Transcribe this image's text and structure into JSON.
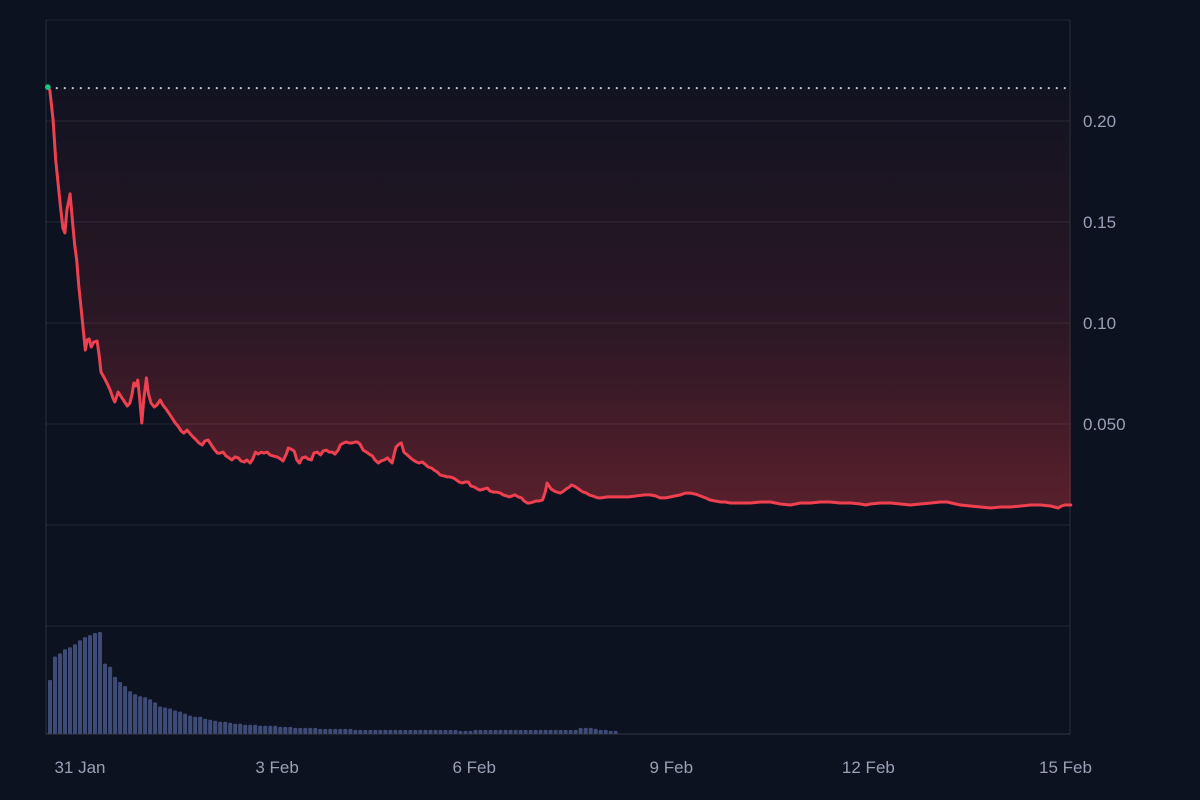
{
  "page": {
    "description": "Dark-theme cryptocurrency price chart with volume pane, 31 Jan - 15 Feb"
  },
  "colors": {
    "background": "#0d1220",
    "grid": "rgba(255,255,255,0.09)",
    "border": "rgba(255,255,255,0.12)",
    "axis_line": "rgba(255,255,255,0.16)",
    "tick_label": "#97a0b4",
    "price_line": "#ef4050",
    "area_fill_top": "rgba(234,57,67,0.02)",
    "area_fill_mid": "rgba(234,57,67,0.14)",
    "area_fill_bottom": "rgba(234,57,67,0.36)",
    "volume_bar": "#3e4b76",
    "baseline_dotted": "rgba(223,227,234,0.85)",
    "start_marker": "#17c784"
  },
  "chart_data": {
    "type": "line",
    "title": "",
    "x_axis": {
      "unit": "date",
      "tick_labels": [
        "31 Jan",
        "3 Feb",
        "6 Feb",
        "9 Feb",
        "12 Feb",
        "15 Feb"
      ],
      "tick_days": [
        0,
        3,
        6,
        9,
        12,
        15
      ],
      "range_days": [
        -0.52,
        15.08
      ],
      "vertical_grid": false
    },
    "y_axis": {
      "position": "right",
      "tick_labels": [
        "0.20",
        "0.15",
        "0.10",
        "0.050"
      ],
      "tick_values": [
        0.2,
        0.15,
        0.1,
        0.05
      ],
      "range": [
        0,
        0.25
      ],
      "grid_values": [
        0.25,
        0.2,
        0.15,
        0.1,
        0.05,
        0.0
      ]
    },
    "baseline": {
      "value": 0.2163,
      "style": "dotted",
      "note": "horizontal dotted reference line at series start price"
    },
    "start_marker": {
      "day": -0.49,
      "value": 0.2168
    },
    "price_series": {
      "name": "price",
      "points": [
        [
          -0.49,
          0.2168
        ],
        [
          -0.46,
          0.2153
        ],
        [
          -0.41,
          0.2005
        ],
        [
          -0.37,
          0.1807
        ],
        [
          -0.3,
          0.1584
        ],
        [
          -0.26,
          0.147
        ],
        [
          -0.23,
          0.1446
        ],
        [
          -0.2,
          0.1559
        ],
        [
          -0.15,
          0.1639
        ],
        [
          -0.11,
          0.1485
        ],
        [
          -0.08,
          0.1386
        ],
        [
          -0.05,
          0.1312
        ],
        [
          -0.02,
          0.1188
        ],
        [
          0.02,
          0.1064
        ],
        [
          0.05,
          0.0965
        ],
        [
          0.08,
          0.0866
        ],
        [
          0.11,
          0.0916
        ],
        [
          0.14,
          0.0921
        ],
        [
          0.17,
          0.0881
        ],
        [
          0.21,
          0.0906
        ],
        [
          0.26,
          0.0911
        ],
        [
          0.29,
          0.0842
        ],
        [
          0.32,
          0.0757
        ],
        [
          0.37,
          0.0728
        ],
        [
          0.41,
          0.0703
        ],
        [
          0.46,
          0.0668
        ],
        [
          0.5,
          0.0629
        ],
        [
          0.53,
          0.0609
        ],
        [
          0.58,
          0.0658
        ],
        [
          0.62,
          0.0639
        ],
        [
          0.67,
          0.0614
        ],
        [
          0.72,
          0.0589
        ],
        [
          0.76,
          0.0604
        ],
        [
          0.79,
          0.0644
        ],
        [
          0.82,
          0.0703
        ],
        [
          0.85,
          0.0688
        ],
        [
          0.88,
          0.0718
        ],
        [
          0.91,
          0.0619
        ],
        [
          0.94,
          0.0505
        ],
        [
          0.97,
          0.0619
        ],
        [
          1.01,
          0.0728
        ],
        [
          1.04,
          0.0653
        ],
        [
          1.08,
          0.0604
        ],
        [
          1.13,
          0.0584
        ],
        [
          1.17,
          0.0594
        ],
        [
          1.22,
          0.0619
        ],
        [
          1.26,
          0.0594
        ],
        [
          1.31,
          0.0574
        ],
        [
          1.36,
          0.055
        ],
        [
          1.4,
          0.053
        ],
        [
          1.45,
          0.0505
        ],
        [
          1.49,
          0.049
        ],
        [
          1.54,
          0.0465
        ],
        [
          1.58,
          0.0455
        ],
        [
          1.63,
          0.047
        ],
        [
          1.68,
          0.045
        ],
        [
          1.72,
          0.0436
        ],
        [
          1.77,
          0.0421
        ],
        [
          1.81,
          0.0406
        ],
        [
          1.86,
          0.0396
        ],
        [
          1.9,
          0.0416
        ],
        [
          1.95,
          0.0421
        ],
        [
          2.0,
          0.0396
        ],
        [
          2.04,
          0.0376
        ],
        [
          2.09,
          0.0356
        ],
        [
          2.13,
          0.0356
        ],
        [
          2.18,
          0.0361
        ],
        [
          2.22,
          0.0342
        ],
        [
          2.27,
          0.0332
        ],
        [
          2.31,
          0.0322
        ],
        [
          2.36,
          0.0337
        ],
        [
          2.41,
          0.0332
        ],
        [
          2.45,
          0.0317
        ],
        [
          2.5,
          0.0312
        ],
        [
          2.54,
          0.0322
        ],
        [
          2.59,
          0.0307
        ],
        [
          2.63,
          0.0327
        ],
        [
          2.67,
          0.0361
        ],
        [
          2.71,
          0.0351
        ],
        [
          2.76,
          0.0361
        ],
        [
          2.8,
          0.0356
        ],
        [
          2.85,
          0.0361
        ],
        [
          2.89,
          0.0347
        ],
        [
          2.94,
          0.0342
        ],
        [
          3.0,
          0.0337
        ],
        [
          3.05,
          0.0327
        ],
        [
          3.09,
          0.0317
        ],
        [
          3.14,
          0.0351
        ],
        [
          3.17,
          0.0381
        ],
        [
          3.21,
          0.0376
        ],
        [
          3.26,
          0.0366
        ],
        [
          3.3,
          0.0322
        ],
        [
          3.34,
          0.0307
        ],
        [
          3.38,
          0.0332
        ],
        [
          3.43,
          0.0337
        ],
        [
          3.47,
          0.0327
        ],
        [
          3.52,
          0.0322
        ],
        [
          3.56,
          0.0356
        ],
        [
          3.61,
          0.0361
        ],
        [
          3.66,
          0.0347
        ],
        [
          3.7,
          0.0366
        ],
        [
          3.75,
          0.0371
        ],
        [
          3.79,
          0.0361
        ],
        [
          3.84,
          0.0361
        ],
        [
          3.88,
          0.0351
        ],
        [
          3.93,
          0.0371
        ],
        [
          3.96,
          0.0396
        ],
        [
          4.01,
          0.0406
        ],
        [
          4.05,
          0.0411
        ],
        [
          4.1,
          0.0406
        ],
        [
          4.14,
          0.0406
        ],
        [
          4.19,
          0.0411
        ],
        [
          4.22,
          0.0411
        ],
        [
          4.26,
          0.0401
        ],
        [
          4.31,
          0.0371
        ],
        [
          4.36,
          0.0361
        ],
        [
          4.4,
          0.0351
        ],
        [
          4.45,
          0.0342
        ],
        [
          4.49,
          0.0322
        ],
        [
          4.54,
          0.0307
        ],
        [
          4.58,
          0.0317
        ],
        [
          4.63,
          0.0322
        ],
        [
          4.68,
          0.0332
        ],
        [
          4.72,
          0.0317
        ],
        [
          4.75,
          0.0307
        ],
        [
          4.78,
          0.0347
        ],
        [
          4.81,
          0.0386
        ],
        [
          4.86,
          0.0401
        ],
        [
          4.89,
          0.0406
        ],
        [
          4.93,
          0.0361
        ],
        [
          4.98,
          0.0347
        ],
        [
          5.03,
          0.0332
        ],
        [
          5.07,
          0.0322
        ],
        [
          5.12,
          0.0312
        ],
        [
          5.16,
          0.0307
        ],
        [
          5.21,
          0.0312
        ],
        [
          5.25,
          0.0302
        ],
        [
          5.3,
          0.0287
        ],
        [
          5.35,
          0.0282
        ],
        [
          5.39,
          0.0272
        ],
        [
          5.44,
          0.0262
        ],
        [
          5.48,
          0.0248
        ],
        [
          5.54,
          0.0243
        ],
        [
          5.59,
          0.0238
        ],
        [
          5.63,
          0.0238
        ],
        [
          5.68,
          0.0233
        ],
        [
          5.73,
          0.0223
        ],
        [
          5.77,
          0.0213
        ],
        [
          5.82,
          0.0208
        ],
        [
          5.86,
          0.0213
        ],
        [
          5.91,
          0.0213
        ],
        [
          5.95,
          0.0193
        ],
        [
          6.0,
          0.0188
        ],
        [
          6.05,
          0.0178
        ],
        [
          6.09,
          0.0173
        ],
        [
          6.15,
          0.0178
        ],
        [
          6.2,
          0.0183
        ],
        [
          6.24,
          0.0168
        ],
        [
          6.29,
          0.0163
        ],
        [
          6.34,
          0.0163
        ],
        [
          6.4,
          0.0158
        ],
        [
          6.44,
          0.0149
        ],
        [
          6.49,
          0.0144
        ],
        [
          6.53,
          0.0139
        ],
        [
          6.58,
          0.0144
        ],
        [
          6.62,
          0.0149
        ],
        [
          6.67,
          0.0139
        ],
        [
          6.72,
          0.0134
        ],
        [
          6.76,
          0.0119
        ],
        [
          6.81,
          0.0109
        ],
        [
          6.85,
          0.0109
        ],
        [
          6.9,
          0.0114
        ],
        [
          6.94,
          0.0119
        ],
        [
          6.99,
          0.0119
        ],
        [
          7.04,
          0.0124
        ],
        [
          7.08,
          0.0163
        ],
        [
          7.11,
          0.0208
        ],
        [
          7.14,
          0.0193
        ],
        [
          7.17,
          0.0178
        ],
        [
          7.22,
          0.0168
        ],
        [
          7.26,
          0.0163
        ],
        [
          7.31,
          0.0158
        ],
        [
          7.36,
          0.0168
        ],
        [
          7.4,
          0.0178
        ],
        [
          7.45,
          0.0188
        ],
        [
          7.48,
          0.0198
        ],
        [
          7.52,
          0.0193
        ],
        [
          7.57,
          0.0183
        ],
        [
          7.61,
          0.0173
        ],
        [
          7.66,
          0.0163
        ],
        [
          7.71,
          0.0158
        ],
        [
          7.75,
          0.0149
        ],
        [
          7.8,
          0.0144
        ],
        [
          7.84,
          0.0139
        ],
        [
          7.89,
          0.0134
        ],
        [
          7.93,
          0.0134
        ],
        [
          8.03,
          0.0139
        ],
        [
          8.12,
          0.0139
        ],
        [
          8.22,
          0.0139
        ],
        [
          8.35,
          0.0139
        ],
        [
          8.47,
          0.0144
        ],
        [
          8.6,
          0.0149
        ],
        [
          8.68,
          0.0149
        ],
        [
          8.76,
          0.0144
        ],
        [
          8.83,
          0.0134
        ],
        [
          8.91,
          0.0134
        ],
        [
          8.99,
          0.0139
        ],
        [
          9.06,
          0.0144
        ],
        [
          9.14,
          0.0149
        ],
        [
          9.21,
          0.0158
        ],
        [
          9.29,
          0.0158
        ],
        [
          9.37,
          0.0153
        ],
        [
          9.44,
          0.0144
        ],
        [
          9.52,
          0.0134
        ],
        [
          9.59,
          0.0124
        ],
        [
          9.67,
          0.0119
        ],
        [
          9.75,
          0.0114
        ],
        [
          9.82,
          0.0114
        ],
        [
          9.9,
          0.0109
        ],
        [
          10.05,
          0.0109
        ],
        [
          10.2,
          0.0109
        ],
        [
          10.36,
          0.0114
        ],
        [
          10.51,
          0.0114
        ],
        [
          10.66,
          0.0104
        ],
        [
          10.81,
          0.0099
        ],
        [
          10.89,
          0.0104
        ],
        [
          10.97,
          0.0109
        ],
        [
          11.12,
          0.0109
        ],
        [
          11.27,
          0.0114
        ],
        [
          11.42,
          0.0114
        ],
        [
          11.57,
          0.0109
        ],
        [
          11.73,
          0.0109
        ],
        [
          11.88,
          0.0104
        ],
        [
          11.96,
          0.0099
        ],
        [
          12.03,
          0.0104
        ],
        [
          12.18,
          0.0109
        ],
        [
          12.34,
          0.0109
        ],
        [
          12.49,
          0.0104
        ],
        [
          12.64,
          0.0099
        ],
        [
          12.79,
          0.0104
        ],
        [
          12.95,
          0.0109
        ],
        [
          13.1,
          0.0114
        ],
        [
          13.2,
          0.0114
        ],
        [
          13.33,
          0.0104
        ],
        [
          13.4,
          0.0099
        ],
        [
          13.55,
          0.0094
        ],
        [
          13.71,
          0.0089
        ],
        [
          13.86,
          0.0084
        ],
        [
          14.01,
          0.0089
        ],
        [
          14.16,
          0.0089
        ],
        [
          14.32,
          0.0094
        ],
        [
          14.47,
          0.0099
        ],
        [
          14.62,
          0.0099
        ],
        [
          14.77,
          0.0094
        ],
        [
          14.89,
          0.0084
        ],
        [
          14.94,
          0.0094
        ],
        [
          14.99,
          0.0099
        ],
        [
          15.08,
          0.0099
        ]
      ]
    },
    "volume_series": {
      "name": "volume",
      "unit": "relative (fraction of max bar)",
      "start_day": -0.457,
      "step_day": 0.0762,
      "rel_values": [
        0.53,
        0.76,
        0.79,
        0.83,
        0.85,
        0.88,
        0.92,
        0.95,
        0.97,
        0.99,
        1.0,
        0.69,
        0.66,
        0.56,
        0.51,
        0.47,
        0.42,
        0.39,
        0.37,
        0.36,
        0.34,
        0.31,
        0.27,
        0.26,
        0.25,
        0.23,
        0.22,
        0.2,
        0.18,
        0.17,
        0.17,
        0.15,
        0.14,
        0.13,
        0.12,
        0.12,
        0.11,
        0.1,
        0.1,
        0.09,
        0.09,
        0.09,
        0.08,
        0.08,
        0.08,
        0.08,
        0.07,
        0.07,
        0.07,
        0.06,
        0.06,
        0.06,
        0.06,
        0.06,
        0.05,
        0.05,
        0.05,
        0.05,
        0.05,
        0.05,
        0.05,
        0.04,
        0.04,
        0.04,
        0.04,
        0.04,
        0.04,
        0.04,
        0.04,
        0.04,
        0.04,
        0.04,
        0.04,
        0.04,
        0.04,
        0.04,
        0.04,
        0.04,
        0.04,
        0.04,
        0.04,
        0.04,
        0.03,
        0.03,
        0.03,
        0.04,
        0.04,
        0.04,
        0.04,
        0.04,
        0.04,
        0.04,
        0.04,
        0.04,
        0.04,
        0.04,
        0.04,
        0.04,
        0.04,
        0.04,
        0.04,
        0.04,
        0.04,
        0.04,
        0.04,
        0.04,
        0.06,
        0.06,
        0.06,
        0.05,
        0.04,
        0.04,
        0.03,
        0.03
      ]
    },
    "legend": {
      "visible": false
    },
    "grid": {
      "horizontal": true,
      "vertical": false,
      "volume_pane_divider": true
    }
  }
}
